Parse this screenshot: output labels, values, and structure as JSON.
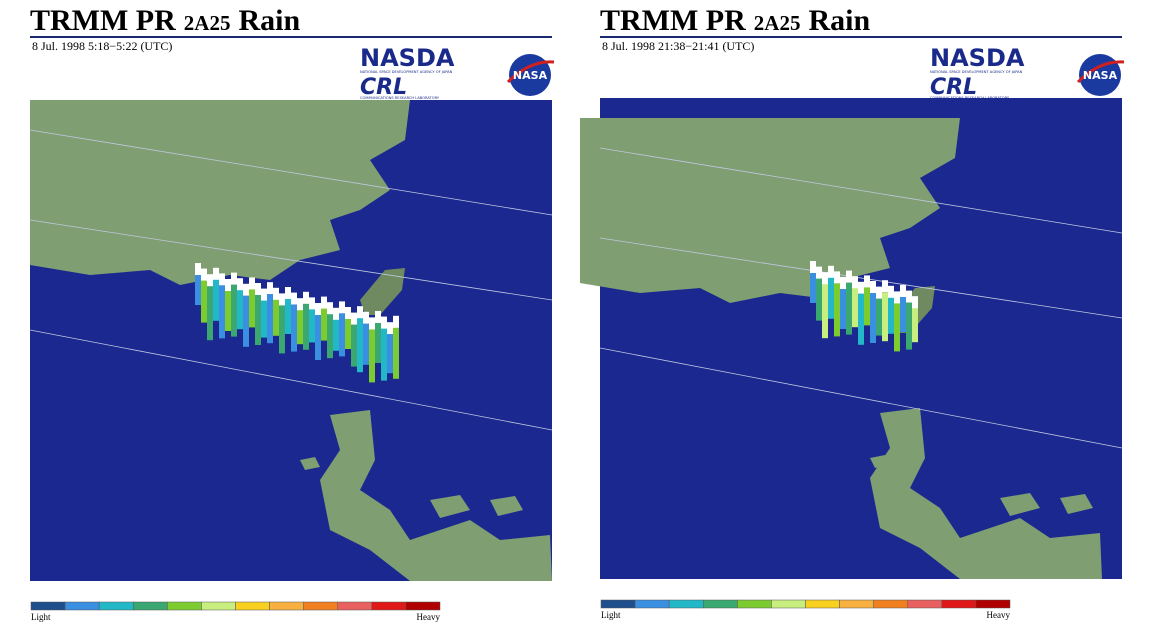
{
  "panels": [
    {
      "title": {
        "main": "TRMM PR",
        "product": "2A25",
        "suffix": "Rain"
      },
      "date": "8 Jul. 1998  5:18−5:22 (UTC)"
    },
    {
      "title": {
        "main": "TRMM PR",
        "product": "2A25",
        "suffix": "Rain"
      },
      "date": "8 Jul. 1998  21:38−21:41 (UTC)"
    }
  ],
  "logos": {
    "nasda": "NASDA",
    "nasda_sub": "NATIONAL SPACE DEVELOPMENT AGENCY OF JAPAN",
    "crl": "CRL",
    "crl_sub": "COMMUNICATIONS RESEARCH LABORATORY",
    "nasa": "NASA"
  },
  "colorbar": {
    "colors": [
      "#1f4e8c",
      "#3a8fe0",
      "#22b8c8",
      "#3aa870",
      "#7ccc30",
      "#c8ee80",
      "#f8d020",
      "#f8b040",
      "#f08020",
      "#e86060",
      "#e01818",
      "#b00000"
    ],
    "low": "Light",
    "high": "Heavy"
  }
}
